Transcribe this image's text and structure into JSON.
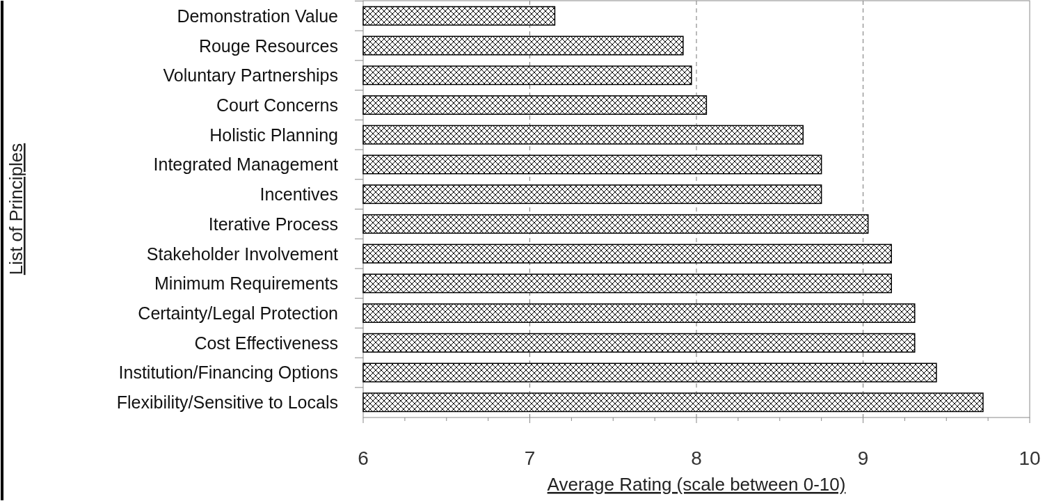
{
  "chart_data": {
    "type": "bar",
    "orientation": "horizontal",
    "xlabel": "Average Rating (scale between 0-10)",
    "ylabel": "List of Principles",
    "categories": [
      "Demonstration Value",
      "Rouge Resources",
      "Voluntary Partnerships",
      "Court Concerns",
      "Holistic Planning",
      "Integrated Management",
      "Incentives",
      "Iterative Process",
      "Stakeholder Involvement",
      "Minimum Requirements",
      "Certainty/Legal Protection",
      "Cost Effectiveness",
      "Institution/Financing Options",
      "Flexibility/Sensitive to Locals"
    ],
    "values": [
      7.15,
      7.92,
      7.97,
      8.06,
      8.64,
      8.75,
      8.75,
      9.03,
      9.17,
      9.17,
      9.31,
      9.31,
      9.44,
      9.72
    ],
    "color": "#000000",
    "xlim": [
      6,
      10
    ],
    "xticks": [
      6,
      {
        "value": 6.25,
        "label": null
      },
      {
        "value": 6.5,
        "label": null
      },
      {
        "value": 6.75,
        "label": null
      },
      7,
      {
        "value": 7.25,
        "label": null
      },
      {
        "value": 7.5,
        "label": null
      },
      {
        "value": 7.75,
        "label": null
      },
      8,
      {
        "value": 8.25,
        "label": null
      },
      {
        "value": 8.5,
        "label": null
      },
      {
        "value": 8.75,
        "label": null
      },
      9,
      {
        "value": 9.25,
        "label": null
      },
      {
        "value": 9.5,
        "label": null
      },
      {
        "value": 9.75,
        "label": null
      },
      10
    ],
    "grid": "x"
  }
}
